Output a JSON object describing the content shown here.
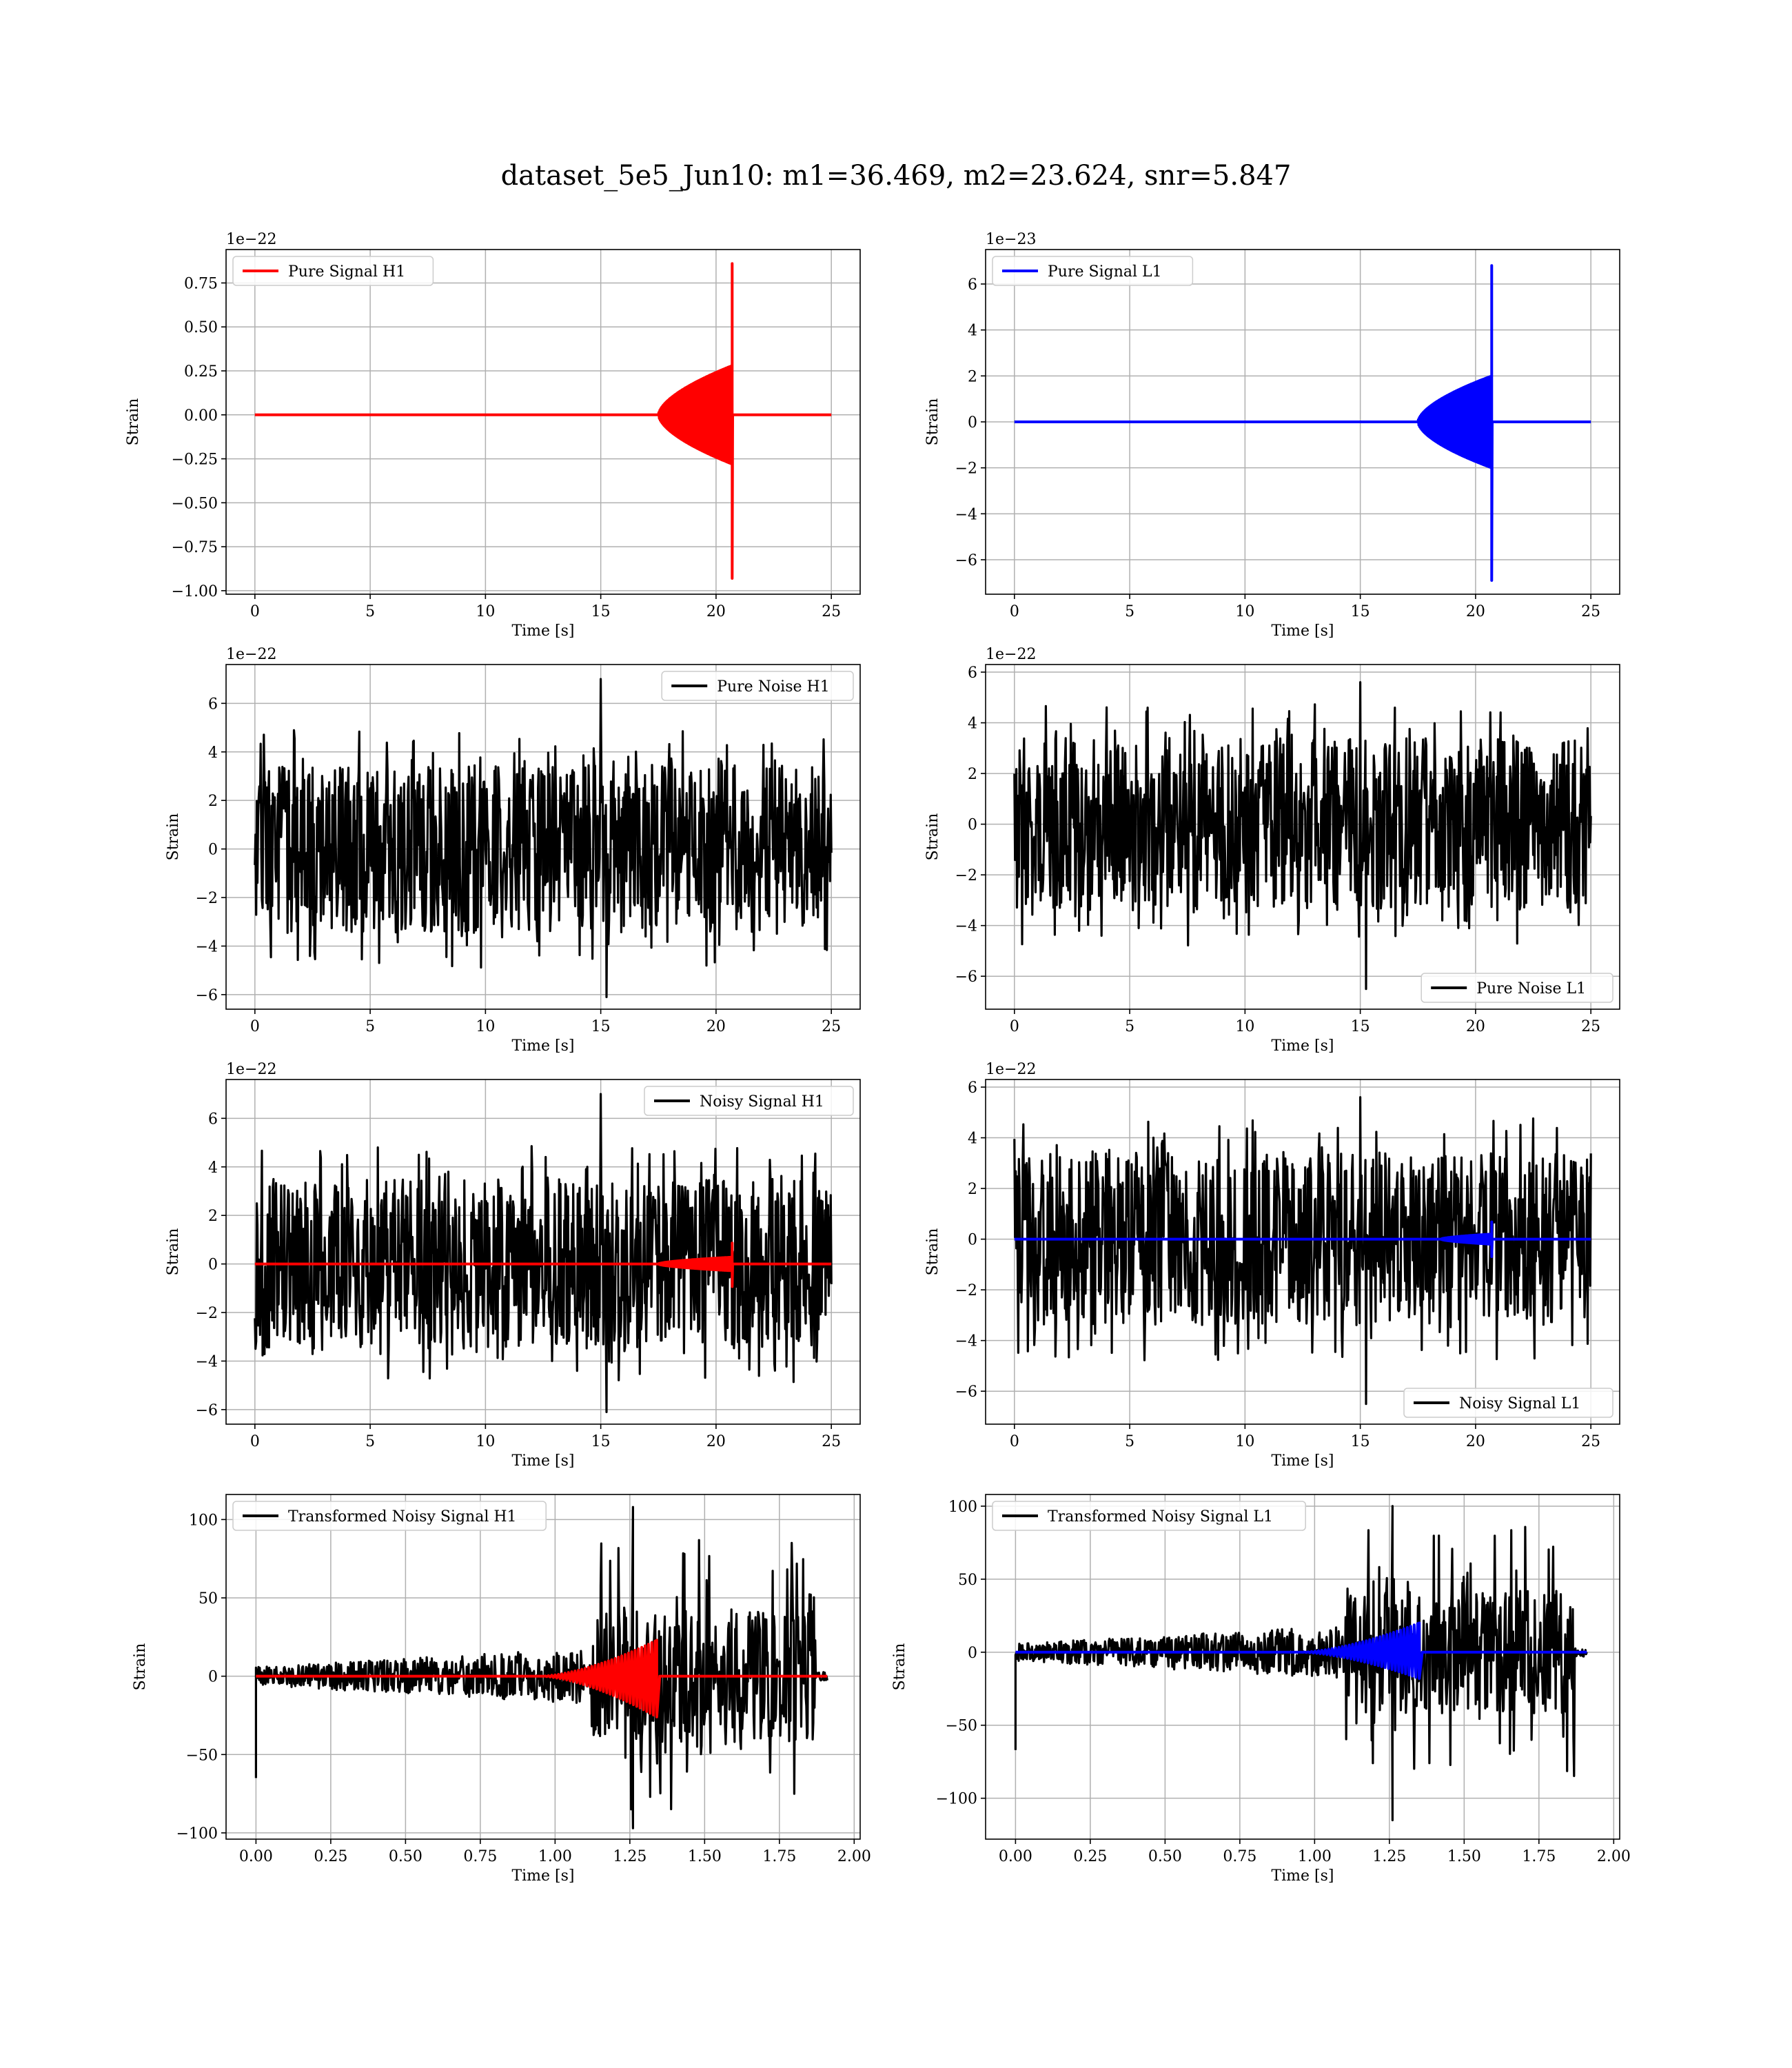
{
  "figure_title": "dataset_5e5_Jun10: m1=36.469, m2=23.624, snr=5.847",
  "colors": {
    "red": "#ff0000",
    "blue": "#0000ff",
    "black": "#000000",
    "grid": "#b0b0b0"
  },
  "chart_data": [
    {
      "id": "pure-signal-h1",
      "type": "line",
      "xlabel": "Time [s]",
      "ylabel": "Strain",
      "offset_text": "1e−22",
      "xlim": [
        -1.25,
        26.25
      ],
      "ylim": [
        -1.02,
        0.94
      ],
      "xticks": [
        0,
        5,
        10,
        15,
        20,
        25
      ],
      "xtick_labels": [
        "0",
        "5",
        "10",
        "15",
        "20",
        "25"
      ],
      "yticks": [
        -1.0,
        -0.75,
        -0.5,
        -0.25,
        0.0,
        0.25,
        0.5,
        0.75
      ],
      "ytick_labels": [
        "−1.00",
        "−0.75",
        "−0.50",
        "−0.25",
        "0.00",
        "0.25",
        "0.50",
        "0.75"
      ],
      "legend": {
        "position": "upper-left",
        "entries": [
          {
            "label": "Pure Signal H1",
            "color": "#ff0000"
          }
        ]
      },
      "series": [
        {
          "name": "Pure Signal H1",
          "color": "#ff0000",
          "kind": "chirp",
          "x_start": 0,
          "x_end": 25,
          "merger_t": 20.7,
          "amp_max": 0.86,
          "amp_min": -0.93,
          "base_amp": 0.28,
          "onset_t": 17.5
        }
      ]
    },
    {
      "id": "pure-signal-l1",
      "type": "line",
      "xlabel": "Time [s]",
      "ylabel": "Strain",
      "offset_text": "1e−23",
      "xlim": [
        -1.25,
        26.25
      ],
      "ylim": [
        -7.5,
        7.5
      ],
      "xticks": [
        0,
        5,
        10,
        15,
        20,
        25
      ],
      "xtick_labels": [
        "0",
        "5",
        "10",
        "15",
        "20",
        "25"
      ],
      "yticks": [
        -6,
        -4,
        -2,
        0,
        2,
        4,
        6
      ],
      "ytick_labels": [
        "−6",
        "−4",
        "−2",
        "0",
        "2",
        "4",
        "6"
      ],
      "legend": {
        "position": "upper-left",
        "entries": [
          {
            "label": "Pure Signal L1",
            "color": "#0000ff"
          }
        ]
      },
      "series": [
        {
          "name": "Pure Signal L1",
          "color": "#0000ff",
          "kind": "chirp",
          "x_start": 0,
          "x_end": 25,
          "merger_t": 20.7,
          "amp_max": 6.8,
          "amp_min": -6.9,
          "base_amp": 2.0,
          "onset_t": 17.5
        }
      ]
    },
    {
      "id": "pure-noise-h1",
      "type": "line",
      "xlabel": "Time [s]",
      "ylabel": "Strain",
      "offset_text": "1e−22",
      "xlim": [
        -1.25,
        26.25
      ],
      "ylim": [
        -6.6,
        7.6
      ],
      "xticks": [
        0,
        5,
        10,
        15,
        20,
        25
      ],
      "xtick_labels": [
        "0",
        "5",
        "10",
        "15",
        "20",
        "25"
      ],
      "yticks": [
        -6,
        -4,
        -2,
        0,
        2,
        4,
        6
      ],
      "ytick_labels": [
        "−6",
        "−4",
        "−2",
        "0",
        "2",
        "4",
        "6"
      ],
      "legend": {
        "position": "upper-right",
        "entries": [
          {
            "label": "Pure Noise H1",
            "color": "#000000"
          }
        ]
      },
      "series": [
        {
          "name": "Pure Noise H1",
          "color": "#000000",
          "kind": "noise",
          "x_start": 0,
          "x_end": 25,
          "amp_max": 7.0,
          "amp_min": -6.1,
          "band": 3.5
        }
      ]
    },
    {
      "id": "pure-noise-l1",
      "type": "line",
      "xlabel": "Time [s]",
      "ylabel": "Strain",
      "offset_text": "1e−22",
      "xlim": [
        -1.25,
        26.25
      ],
      "ylim": [
        -7.3,
        6.3
      ],
      "xticks": [
        0,
        5,
        10,
        15,
        20,
        25
      ],
      "xtick_labels": [
        "0",
        "5",
        "10",
        "15",
        "20",
        "25"
      ],
      "yticks": [
        -6,
        -4,
        -2,
        0,
        2,
        4,
        6
      ],
      "ytick_labels": [
        "−6",
        "−4",
        "−2",
        "0",
        "2",
        "4",
        "6"
      ],
      "legend": {
        "position": "lower-right",
        "entries": [
          {
            "label": "Pure Noise L1",
            "color": "#000000"
          }
        ]
      },
      "series": [
        {
          "name": "Pure Noise L1",
          "color": "#000000",
          "kind": "noise",
          "x_start": 0,
          "x_end": 25,
          "amp_max": 5.6,
          "amp_min": -6.5,
          "band": 3.4
        }
      ]
    },
    {
      "id": "noisy-signal-h1",
      "type": "line",
      "xlabel": "Time [s]",
      "ylabel": "Strain",
      "offset_text": "1e−22",
      "xlim": [
        -1.25,
        26.25
      ],
      "ylim": [
        -6.6,
        7.6
      ],
      "xticks": [
        0,
        5,
        10,
        15,
        20,
        25
      ],
      "xtick_labels": [
        "0",
        "5",
        "10",
        "15",
        "20",
        "25"
      ],
      "yticks": [
        -6,
        -4,
        -2,
        0,
        2,
        4,
        6
      ],
      "ytick_labels": [
        "−6",
        "−4",
        "−2",
        "0",
        "2",
        "4",
        "6"
      ],
      "legend": {
        "position": "upper-right",
        "entries": [
          {
            "label": "Noisy Signal H1",
            "color": "#000000"
          }
        ]
      },
      "series": [
        {
          "name": "Noisy Signal H1",
          "color": "#000000",
          "kind": "noise",
          "x_start": 0,
          "x_end": 25,
          "amp_max": 7.0,
          "amp_min": -6.1,
          "band": 3.5
        },
        {
          "color": "#ff0000",
          "kind": "chirp",
          "x_start": 0,
          "x_end": 25,
          "merger_t": 20.7,
          "amp_max": 0.86,
          "amp_min": -0.93,
          "base_amp": 0.28,
          "onset_t": 17.5
        }
      ]
    },
    {
      "id": "noisy-signal-l1",
      "type": "line",
      "xlabel": "Time [s]",
      "ylabel": "Strain",
      "offset_text": "1e−22",
      "xlim": [
        -1.25,
        26.25
      ],
      "ylim": [
        -7.3,
        6.3
      ],
      "xticks": [
        0,
        5,
        10,
        15,
        20,
        25
      ],
      "xtick_labels": [
        "0",
        "5",
        "10",
        "15",
        "20",
        "25"
      ],
      "yticks": [
        -6,
        -4,
        -2,
        0,
        2,
        4,
        6
      ],
      "ytick_labels": [
        "−6",
        "−4",
        "−2",
        "0",
        "2",
        "4",
        "6"
      ],
      "legend": {
        "position": "lower-right",
        "entries": [
          {
            "label": "Noisy Signal L1",
            "color": "#000000"
          }
        ]
      },
      "series": [
        {
          "name": "Noisy Signal L1",
          "color": "#000000",
          "kind": "noise",
          "x_start": 0,
          "x_end": 25,
          "amp_max": 5.6,
          "amp_min": -6.5,
          "band": 3.4
        },
        {
          "color": "#0000ff",
          "kind": "chirp",
          "x_start": 0,
          "x_end": 25,
          "merger_t": 20.7,
          "amp_max": 0.68,
          "amp_min": -0.69,
          "base_amp": 0.2,
          "onset_t": 18.5
        }
      ]
    },
    {
      "id": "transformed-noisy-signal-h1",
      "type": "line",
      "xlabel": "Time [s]",
      "ylabel": "Strain",
      "offset_text": "",
      "xlim": [
        -0.1,
        2.02
      ],
      "ylim": [
        -104,
        116
      ],
      "xticks": [
        0,
        0.25,
        0.5,
        0.75,
        1.0,
        1.25,
        1.5,
        1.75,
        2.0
      ],
      "xtick_labels": [
        "0.00",
        "0.25",
        "0.50",
        "0.75",
        "1.00",
        "1.25",
        "1.50",
        "1.75",
        "2.00"
      ],
      "yticks": [
        -100,
        -50,
        0,
        50,
        100
      ],
      "ytick_labels": [
        "−100",
        "−50",
        "0",
        "50",
        "100"
      ],
      "legend": {
        "position": "upper-left",
        "entries": [
          {
            "label": "Transformed Noisy Signal H1",
            "color": "#000000"
          }
        ]
      },
      "series": [
        {
          "name": "Transformed Noisy Signal H1",
          "color": "#000000",
          "kind": "whitened",
          "x_start": 0,
          "x_end": 1.91,
          "amp_max": 108,
          "amp_min": -97,
          "spike_start": -65,
          "burst_t": 1.12,
          "burst_end": 1.87
        },
        {
          "color": "#ff0000",
          "kind": "whitened-chirp",
          "x_start": 0,
          "x_end": 1.91,
          "onset_t": 0.95,
          "merger_t": 1.34,
          "amp_max": 23,
          "amp_min": -26
        }
      ]
    },
    {
      "id": "transformed-noisy-signal-l1",
      "type": "line",
      "xlabel": "Time [s]",
      "ylabel": "Strain",
      "offset_text": "",
      "xlim": [
        -0.1,
        2.02
      ],
      "ylim": [
        -128,
        108
      ],
      "xticks": [
        0,
        0.25,
        0.5,
        0.75,
        1.0,
        1.25,
        1.5,
        1.75,
        2.0
      ],
      "xtick_labels": [
        "0.00",
        "0.25",
        "0.50",
        "0.75",
        "1.00",
        "1.25",
        "1.50",
        "1.75",
        "2.00"
      ],
      "yticks": [
        -100,
        -50,
        0,
        50,
        100
      ],
      "ytick_labels": [
        "−100",
        "−50",
        "0",
        "50",
        "100"
      ],
      "legend": {
        "position": "upper-left",
        "entries": [
          {
            "label": "Transformed Noisy Signal L1",
            "color": "#000000"
          }
        ]
      },
      "series": [
        {
          "name": "Transformed Noisy Signal L1",
          "color": "#000000",
          "kind": "whitened",
          "x_start": 0,
          "x_end": 1.91,
          "amp_max": 100,
          "amp_min": -115,
          "spike_start": -67,
          "burst_t": 1.1,
          "burst_end": 1.87
        },
        {
          "color": "#0000ff",
          "kind": "whitened-chirp",
          "x_start": 0,
          "x_end": 1.91,
          "onset_t": 0.95,
          "merger_t": 1.35,
          "amp_max": 20,
          "amp_min": -18
        }
      ]
    }
  ]
}
